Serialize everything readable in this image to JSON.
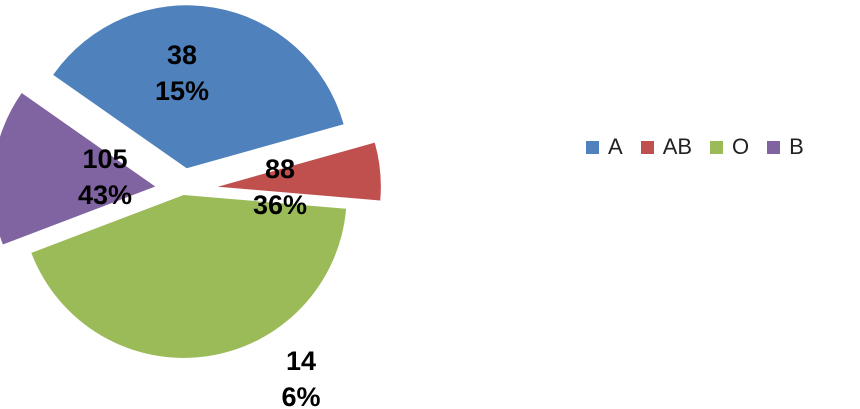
{
  "chart_data": {
    "type": "pie",
    "categories": [
      "A",
      "AB",
      "O",
      "B"
    ],
    "values": [
      88,
      14,
      105,
      38
    ],
    "percent_labels": [
      "36%",
      "6%",
      "43%",
      "15%"
    ],
    "colors": [
      "#4F81BD",
      "#C0504D",
      "#9BBB59",
      "#8064A2"
    ],
    "exploded": true,
    "legend_position": "right",
    "title": ""
  }
}
